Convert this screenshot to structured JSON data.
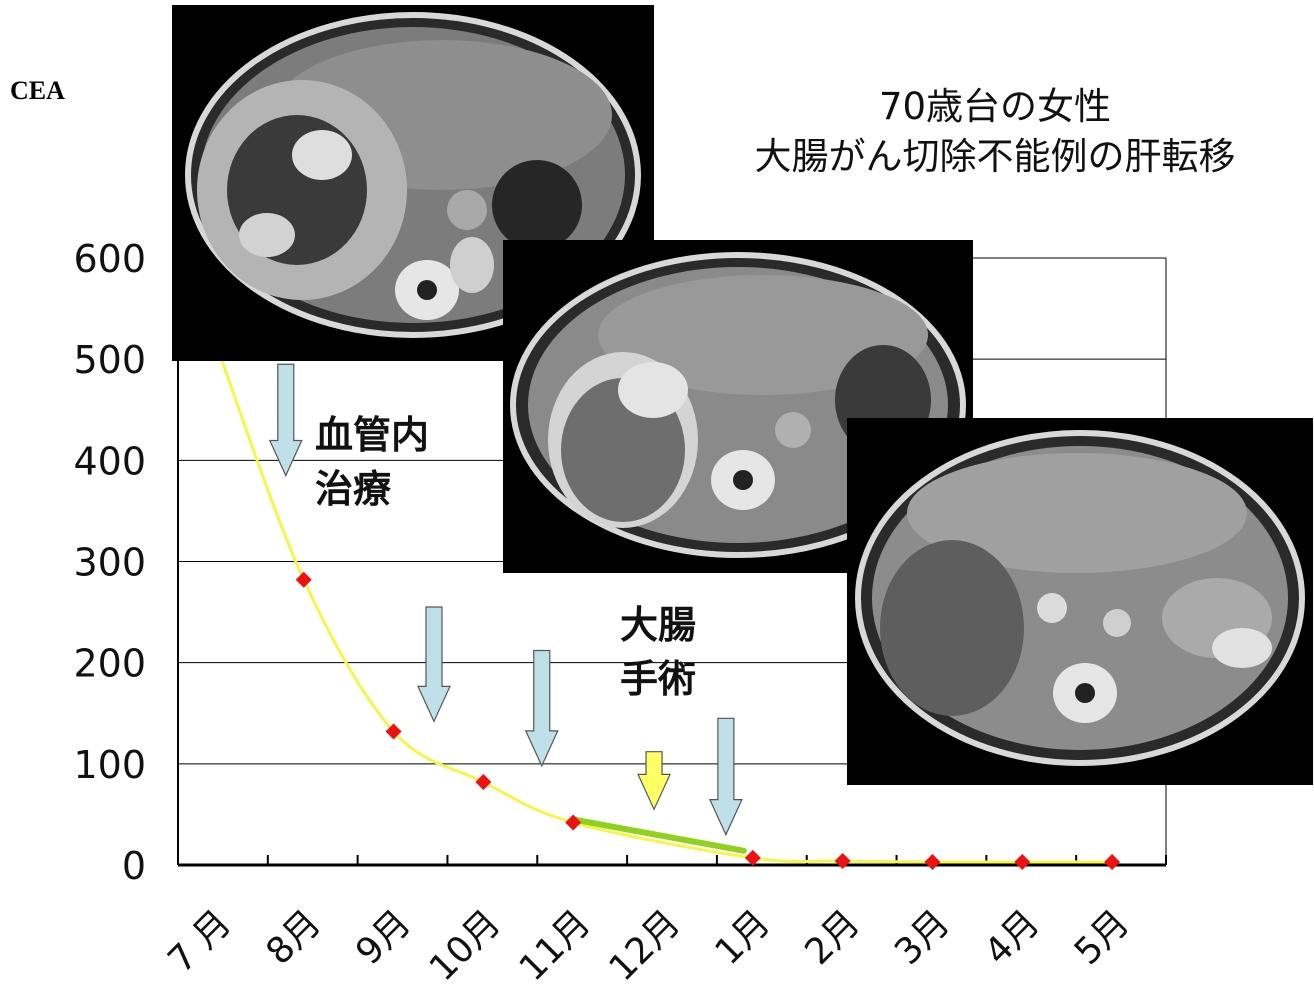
{
  "chart_data": {
    "type": "line",
    "title": "70歳台の女性",
    "subtitle": "大腸がん切除不能例の肝転移",
    "ylabel": "CEA",
    "xlabel": "",
    "ylim": [
      0,
      600
    ],
    "yticks": [
      "0",
      "100",
      "200",
      "300",
      "400",
      "500",
      "600"
    ],
    "categories": [
      "7 月",
      "8月",
      "9月",
      "10月",
      "11月",
      "12月",
      "1月",
      "2月",
      "3月",
      "4月",
      "5月"
    ],
    "grid": true,
    "series": [
      {
        "x": [
          0.45,
          1.4,
          2.4,
          3.4,
          4.4,
          6.4,
          7.4,
          8.4,
          9.4,
          10.4
        ],
        "values": [
          508,
          282,
          132,
          82,
          42,
          7,
          4,
          3,
          3,
          3
        ],
        "color": "#f5f54a",
        "marker_color": "#ee1111"
      }
    ],
    "highlight_segment": {
      "from_x": 4.4,
      "to_x": 6.3,
      "from_y": 45,
      "to_y": 14,
      "color": "#8fd11c"
    },
    "annotations": [
      {
        "text_lines": [
          "血管内",
          "治療"
        ]
      },
      {
        "text_lines": [
          "大腸",
          "手術"
        ]
      }
    ],
    "arrows": [
      {
        "x": 1.2,
        "top": 495,
        "bottom": 385,
        "color": "#bfe0e8",
        "kind": "血管内治療"
      },
      {
        "x": 2.85,
        "top": 255,
        "bottom": 142,
        "color": "#bfe0e8",
        "kind": "血管内治療"
      },
      {
        "x": 4.05,
        "top": 212,
        "bottom": 98,
        "color": "#bfe0e8",
        "kind": "血管内治療"
      },
      {
        "x": 5.3,
        "top": 112,
        "bottom": 55,
        "color": "#ffff66",
        "kind": "大腸手術"
      },
      {
        "x": 6.1,
        "top": 145,
        "bottom": 30,
        "color": "#bfe0e8",
        "kind": "血管内治療"
      }
    ],
    "images": [
      {
        "name": "ct-scan-before",
        "description": "CT"
      },
      {
        "name": "ct-scan-middle",
        "description": "CT"
      },
      {
        "name": "ct-scan-after",
        "description": "CT"
      }
    ]
  },
  "title_lines": [
    "70歳台の女性",
    "大腸がん切除不能例の肝転移"
  ],
  "annotation_vascular": [
    "血管内",
    "治療"
  ],
  "annotation_surgery": [
    "大腸",
    "手術"
  ]
}
